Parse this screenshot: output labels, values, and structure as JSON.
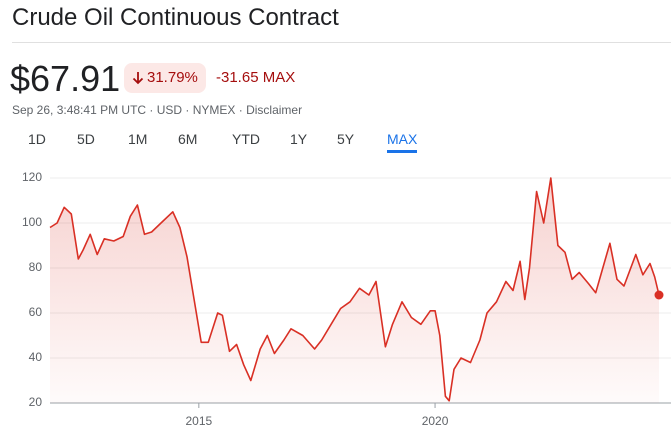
{
  "header": {
    "title": "Crude Oil Continuous Contract",
    "price": "$67.91",
    "change_percent": "31.79%",
    "change_abs": "-31.65 MAX",
    "meta": "Sep 26, 3:48:41 PM UTC · USD · NYMEX · Disclaimer",
    "tabs": [
      "1D",
      "5D",
      "1M",
      "6M",
      "YTD",
      "1Y",
      "5Y",
      "MAX"
    ]
  },
  "chart_data": {
    "type": "line",
    "color": "#d93025",
    "grid": true,
    "x": [
      2011.85,
      2012.0,
      2012.15,
      2012.3,
      2012.45,
      2012.55,
      2012.7,
      2012.85,
      2013.0,
      2013.2,
      2013.4,
      2013.55,
      2013.7,
      2013.85,
      2014.0,
      2014.2,
      2014.45,
      2014.6,
      2014.75,
      2014.9,
      2015.05,
      2015.2,
      2015.4,
      2015.5,
      2015.65,
      2015.8,
      2015.95,
      2016.1,
      2016.3,
      2016.45,
      2016.6,
      2016.8,
      2016.95,
      2017.2,
      2017.45,
      2017.6,
      2017.8,
      2018.0,
      2018.2,
      2018.4,
      2018.6,
      2018.75,
      2018.95,
      2019.1,
      2019.3,
      2019.5,
      2019.7,
      2019.9,
      2020.0,
      2020.1,
      2020.22,
      2020.3,
      2020.4,
      2020.55,
      2020.75,
      2020.95,
      2021.1,
      2021.3,
      2021.5,
      2021.65,
      2021.8,
      2021.9,
      2022.0,
      2022.15,
      2022.3,
      2022.45,
      2022.6,
      2022.75,
      2022.9,
      2023.05,
      2023.25,
      2023.4,
      2023.55,
      2023.7,
      2023.85,
      2024.0,
      2024.25,
      2024.4,
      2024.55,
      2024.65,
      2024.74
    ],
    "values": [
      98,
      100,
      107,
      104,
      84,
      88,
      95,
      86,
      93,
      92,
      94,
      103,
      108,
      95,
      96,
      100,
      105,
      98,
      85,
      66,
      47,
      47,
      60,
      59,
      43,
      46,
      37,
      30,
      44,
      50,
      42,
      48,
      53,
      50,
      44,
      48,
      55,
      62,
      65,
      71,
      68,
      74,
      45,
      55,
      65,
      58,
      55,
      61,
      61,
      50,
      23,
      21,
      35,
      40,
      38,
      48,
      60,
      65,
      74,
      70,
      83,
      66,
      80,
      114,
      100,
      120,
      90,
      87,
      75,
      78,
      73,
      69,
      80,
      91,
      75,
      72,
      86,
      77,
      82,
      76,
      68
    ],
    "xlim": [
      2011.85,
      2024.74
    ],
    "ylim": [
      20,
      120
    ],
    "xticks": [
      2015,
      2020
    ],
    "yticks": [
      20,
      40,
      60,
      80,
      100,
      120
    ]
  }
}
